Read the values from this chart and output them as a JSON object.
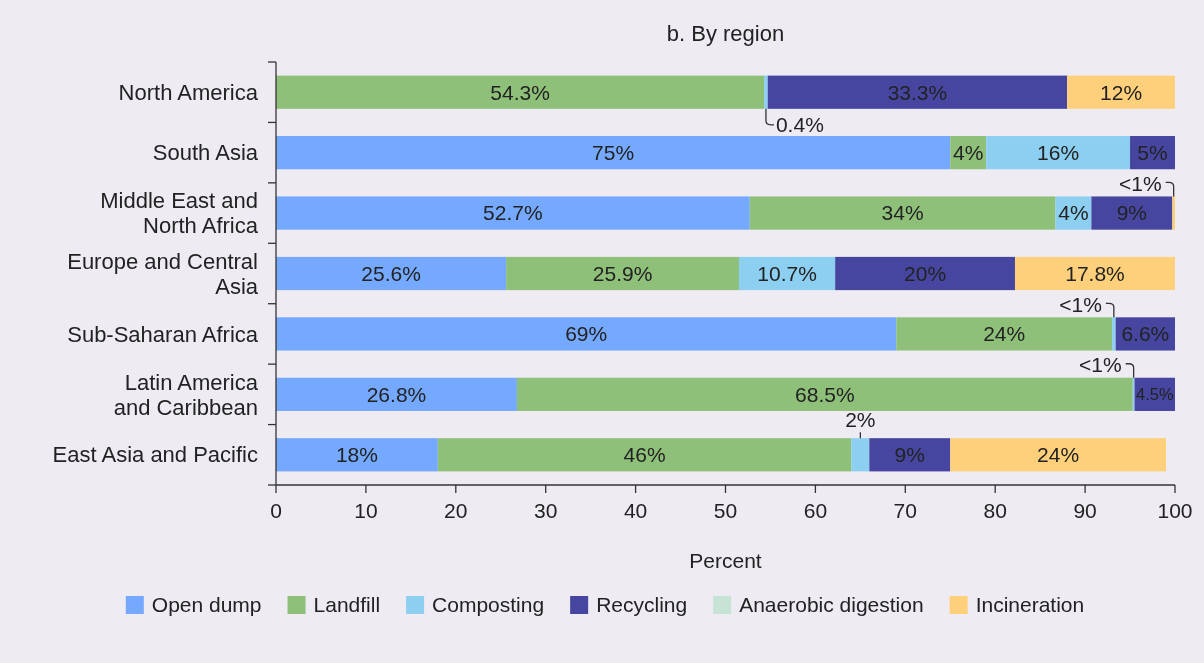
{
  "chart_data": {
    "type": "bar",
    "orientation": "horizontal",
    "stacked": true,
    "title": "b. By region",
    "xlabel": "Percent",
    "categories": [
      "North America",
      "South Asia",
      "Middle East and\nNorth Africa",
      "Europe and Central\nAsia",
      "Sub-Saharan Africa",
      "Latin America\nand Caribbean",
      "East Asia and Pacific"
    ],
    "series": [
      {
        "name": "Open dump",
        "color": "#74a9ff",
        "values": [
          null,
          75,
          52.7,
          25.6,
          69,
          26.8,
          18
        ],
        "value_labels": [
          null,
          "75%",
          "52.7%",
          "25.6%",
          "69%",
          "26.8%",
          "18%"
        ]
      },
      {
        "name": "Landfill",
        "color": "#8fc07a",
        "values": [
          54.3,
          4,
          34,
          25.9,
          24,
          68.5,
          46
        ],
        "value_labels": [
          "54.3%",
          "4%",
          "34%",
          "25.9%",
          "24%",
          "68.5%",
          "46%"
        ]
      },
      {
        "name": "Composting",
        "color": "#8dcff0",
        "values": [
          0.4,
          16,
          4,
          10.7,
          0.4,
          0.2,
          2
        ],
        "value_labels": [
          "0.4%",
          "16%",
          "4%",
          "10.7%",
          "<1%",
          "<1%",
          "2%"
        ]
      },
      {
        "name": "Recycling",
        "color": "#4646a0",
        "values": [
          33.3,
          5,
          9,
          20,
          6.6,
          4.5,
          9
        ],
        "value_labels": [
          "33.3%",
          "5%",
          "9%",
          "20%",
          "6.6%",
          "4.5%",
          "9%"
        ]
      },
      {
        "name": "Anaerobic digestion",
        "color": "#c6e3d6",
        "values": [
          null,
          null,
          null,
          null,
          null,
          null,
          null
        ],
        "value_labels": [
          null,
          null,
          null,
          null,
          null,
          null,
          null
        ]
      },
      {
        "name": "Incineration",
        "color": "#ffd07c",
        "values": [
          12,
          null,
          0.3,
          17.8,
          null,
          null,
          24
        ],
        "value_labels": [
          "12%",
          null,
          "<1%",
          "17.8%",
          null,
          null,
          "24%"
        ]
      }
    ],
    "xlim": [
      0,
      100
    ],
    "xticks": [
      0,
      10,
      20,
      30,
      40,
      50,
      60,
      70,
      80,
      90,
      100
    ],
    "grid": false,
    "legend": "bottom"
  }
}
